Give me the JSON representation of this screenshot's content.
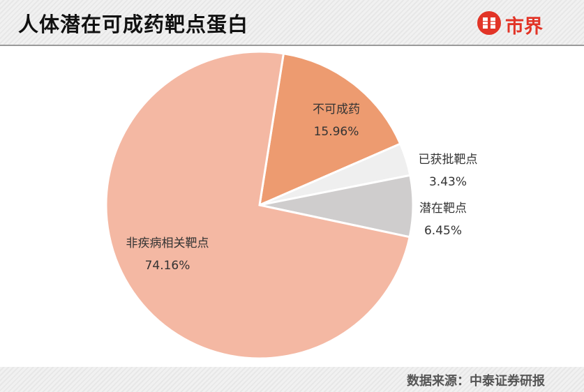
{
  "header": {
    "title": "人体潜在可成药靶点蛋白",
    "logo_text": "市界",
    "logo_color": "#e23427"
  },
  "footer": {
    "source": "数据来源：中泰证券研报"
  },
  "chart_data": {
    "type": "pie",
    "title": "人体潜在可成药靶点蛋白",
    "slices": [
      {
        "name": "不可成药",
        "value": 15.96,
        "label": "15.96%",
        "color": "#ed9b70"
      },
      {
        "name": "已获批靶点",
        "value": 3.43,
        "label": "3.43%",
        "color": "#efefef"
      },
      {
        "name": "潜在靶点",
        "value": 6.45,
        "label": "6.45%",
        "color": "#cfcdcd"
      },
      {
        "name": "非疾病相关靶点",
        "value": 74.16,
        "label": "74.16%",
        "color": "#f4b8a3"
      }
    ],
    "start_angle_deg": 9,
    "direction": "clockwise"
  }
}
